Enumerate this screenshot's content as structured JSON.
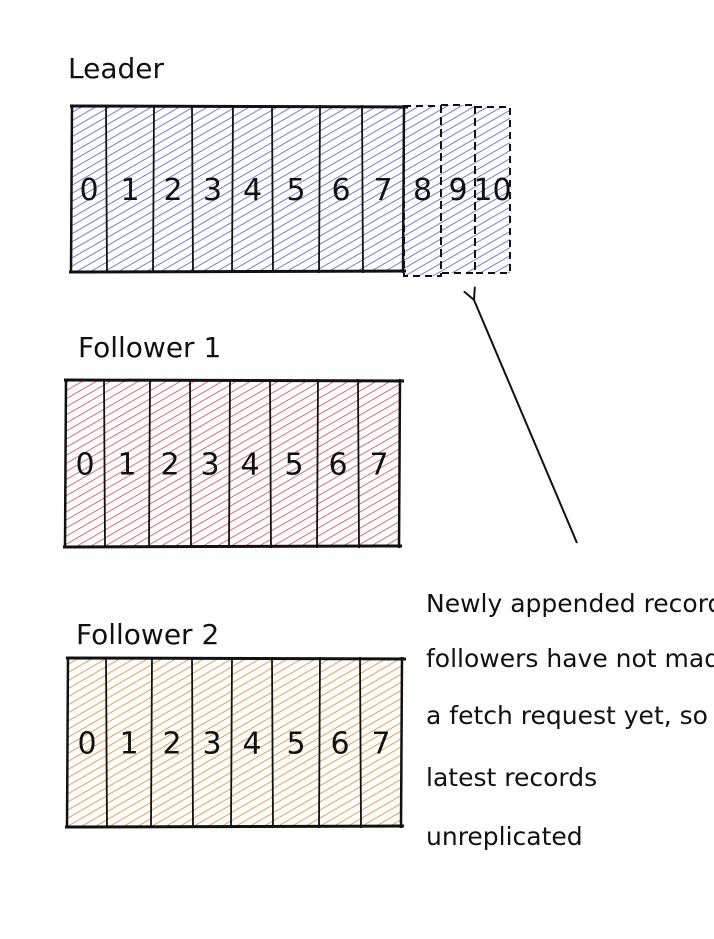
{
  "colors": {
    "leader": "#4a5fd0",
    "follower_1": "#d9495a",
    "follower_2": "#e58a2a",
    "ink": "#111111"
  },
  "leader": {
    "title": "Leader",
    "cells": [
      "0",
      "1",
      "2",
      "3",
      "4",
      "5",
      "6",
      "7"
    ],
    "pending_cells": [
      "8",
      "9",
      "10"
    ]
  },
  "follower_1": {
    "title": "Follower 1",
    "cells": [
      "0",
      "1",
      "2",
      "3",
      "4",
      "5",
      "6",
      "7"
    ]
  },
  "follower_2": {
    "title": "Follower 2",
    "cells": [
      "0",
      "1",
      "2",
      "3",
      "4",
      "5",
      "6",
      "7"
    ]
  },
  "annotation": {
    "lines": [
      "Newly appended records",
      "followers have not made",
      "a fetch request yet, so",
      "latest records",
      "unreplicated"
    ]
  }
}
